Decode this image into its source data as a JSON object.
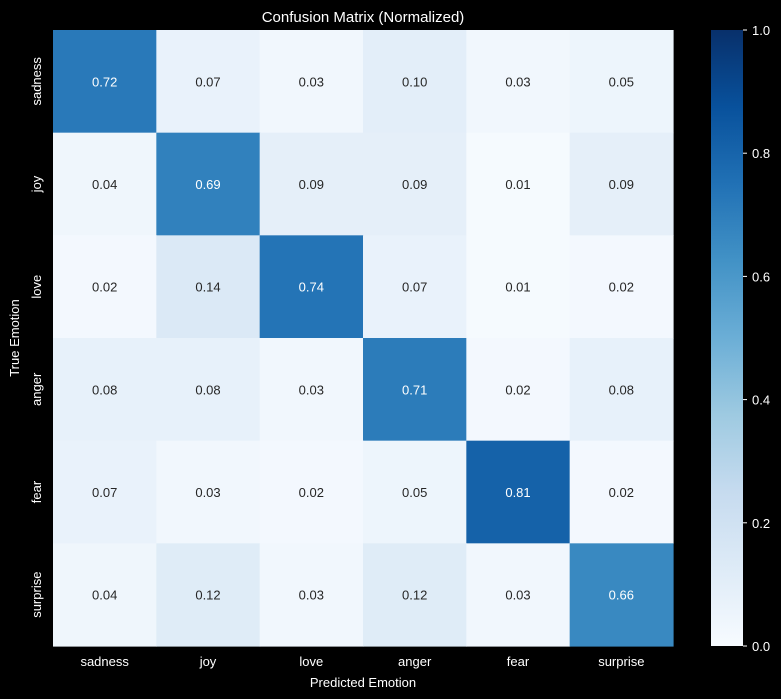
{
  "chart_data": {
    "type": "heatmap",
    "title": "Confusion Matrix (Normalized)",
    "xlabel": "Predicted Emotion",
    "ylabel": "True Emotion",
    "x_categories": [
      "sadness",
      "joy",
      "love",
      "anger",
      "fear",
      "surprise"
    ],
    "y_categories": [
      "sadness",
      "joy",
      "love",
      "anger",
      "fear",
      "surprise"
    ],
    "values": [
      [
        0.72,
        0.07,
        0.03,
        0.1,
        0.03,
        0.05
      ],
      [
        0.04,
        0.69,
        0.09,
        0.09,
        0.01,
        0.09
      ],
      [
        0.02,
        0.14,
        0.74,
        0.07,
        0.01,
        0.02
      ],
      [
        0.08,
        0.08,
        0.03,
        0.71,
        0.02,
        0.08
      ],
      [
        0.07,
        0.03,
        0.02,
        0.05,
        0.81,
        0.02
      ],
      [
        0.04,
        0.12,
        0.03,
        0.12,
        0.03,
        0.66
      ]
    ],
    "value_format": "0.00",
    "colormap": "Blues",
    "color_range": [
      0,
      1
    ],
    "colorbar_ticks": [
      "0.0",
      "0.2",
      "0.4",
      "0.6",
      "0.8",
      "1.0"
    ],
    "colorbar_tick_values": [
      0.0,
      0.2,
      0.4,
      0.6,
      0.8,
      1.0
    ],
    "colors": {
      "background": "#000000",
      "text_light": "#ffffff",
      "text_dark": "#262626",
      "axis_text": "#ffffff"
    }
  }
}
